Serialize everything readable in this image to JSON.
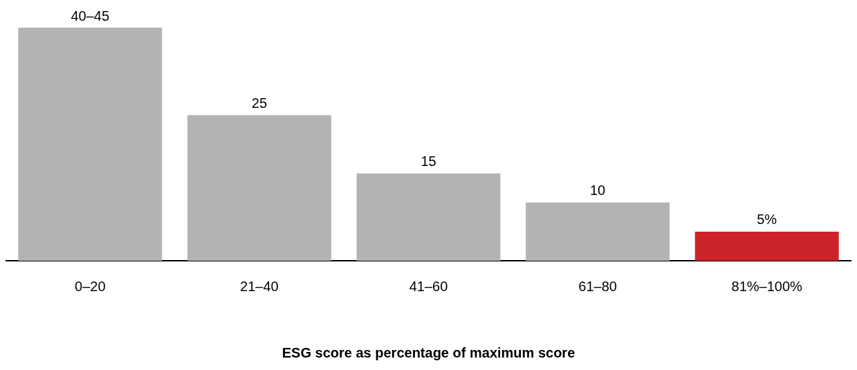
{
  "chart_data": {
    "type": "bar",
    "xlabel": "ESG score as percentage of maximum score",
    "categories": [
      "0–20",
      "21–40",
      "41–60",
      "61–80",
      "81%–100%"
    ],
    "values": [
      40,
      25,
      15,
      10,
      5
    ],
    "value_labels": [
      "40–45",
      "25",
      "15",
      "10",
      "5%"
    ],
    "colors": [
      "#b3b3b3",
      "#b3b3b3",
      "#b3b3b3",
      "#b3b3b3",
      "#cc2229"
    ],
    "grid": false,
    "legend": false
  }
}
